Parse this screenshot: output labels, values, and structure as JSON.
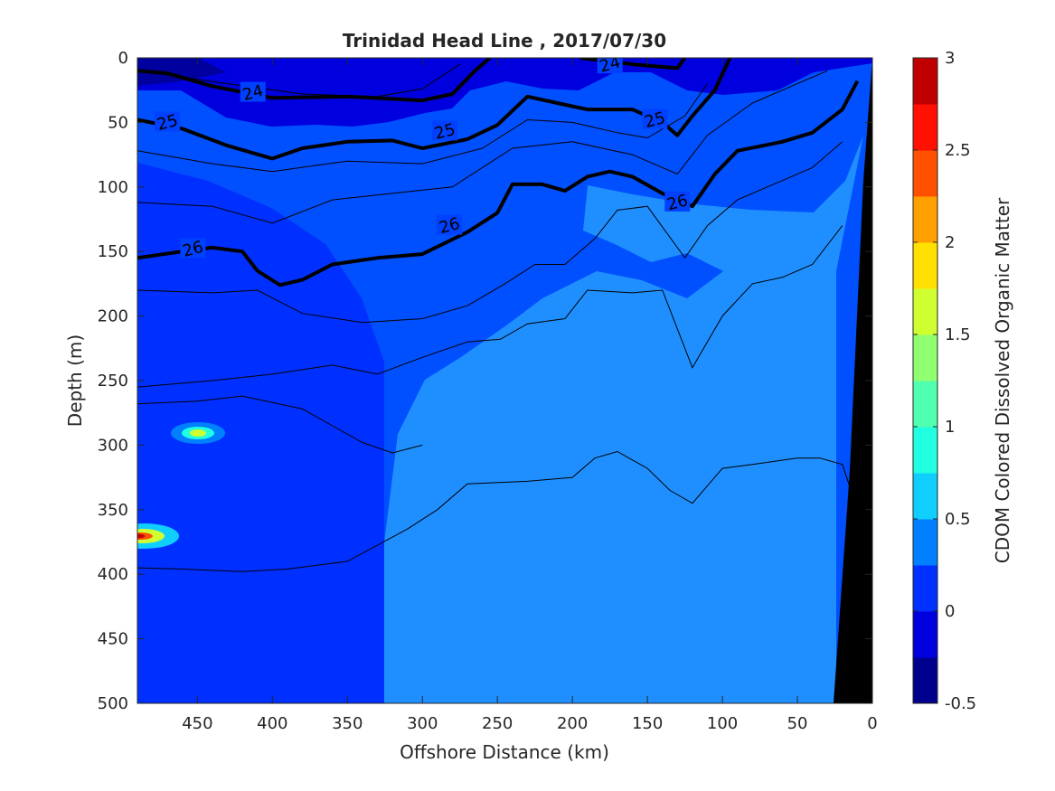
{
  "chart_data": {
    "type": "heatmap",
    "title": "Trinidad Head Line , 2017/07/30",
    "xlabel": "Offshore Distance (km)",
    "ylabel": "Depth (m)",
    "colorbar_label": "CDOM Colored Dissolved Organic Matter",
    "xlim": [
      490,
      0
    ],
    "ylim": [
      0,
      500
    ],
    "x_ticks": [
      450,
      400,
      350,
      300,
      250,
      200,
      150,
      100,
      50,
      0
    ],
    "y_ticks": [
      0,
      50,
      100,
      150,
      200,
      250,
      300,
      350,
      400,
      450,
      500
    ],
    "colorbar_range": [
      -0.5,
      3
    ],
    "colorbar_ticks": [
      -0.5,
      0,
      0.5,
      1,
      1.5,
      2,
      2.5,
      3
    ],
    "colorbar_colors": [
      "#00008f",
      "#0000df",
      "#0030ff",
      "#0080ff",
      "#10cfff",
      "#20ffdf",
      "#50ffaf",
      "#90ff70",
      "#cfff30",
      "#ffe000",
      "#ffa000",
      "#ff5000",
      "#ff1000",
      "#c00000"
    ],
    "regions": [
      {
        "name": "near-surface band",
        "value": 0.0
      },
      {
        "name": "upper water column",
        "value": 0.25
      },
      {
        "name": "deep offshore",
        "value": 0.25
      },
      {
        "name": "deep nearshore",
        "value": 0.5
      },
      {
        "name": "anomaly at 450 km, 290 m",
        "value": 1.8
      },
      {
        "name": "anomaly at 485 km, 370 m",
        "value": 2.9
      }
    ],
    "contours": [
      {
        "level": 24,
        "bold": true,
        "points": [
          [
            490,
            10
          ],
          [
            470,
            12
          ],
          [
            440,
            22
          ],
          [
            400,
            31
          ],
          [
            350,
            30
          ],
          [
            300,
            33
          ],
          [
            280,
            28
          ],
          [
            265,
            10
          ],
          [
            255,
            0
          ]
        ],
        "labels": [
          [
            413,
            27
          ]
        ]
      },
      {
        "level": 24,
        "bold": true,
        "points": [
          [
            195,
            0
          ],
          [
            160,
            5
          ],
          [
            130,
            8
          ],
          [
            125,
            0
          ]
        ],
        "labels": [
          [
            175,
            5
          ]
        ]
      },
      {
        "level": 25,
        "bold": true,
        "points": [
          [
            490,
            48
          ],
          [
            460,
            55
          ],
          [
            430,
            68
          ],
          [
            400,
            78
          ],
          [
            380,
            70
          ],
          [
            350,
            65
          ],
          [
            320,
            64
          ],
          [
            300,
            70
          ],
          [
            270,
            63
          ],
          [
            250,
            52
          ],
          [
            230,
            30
          ],
          [
            210,
            35
          ],
          [
            190,
            40
          ],
          [
            160,
            40
          ],
          [
            140,
            50
          ],
          [
            130,
            60
          ],
          [
            120,
            45
          ],
          [
            105,
            25
          ],
          [
            95,
            0
          ]
        ],
        "labels": [
          [
            470,
            50
          ],
          [
            285,
            57
          ],
          [
            145,
            48
          ]
        ]
      },
      {
        "level": 26,
        "bold": true,
        "points": [
          [
            490,
            155
          ],
          [
            460,
            150
          ],
          [
            440,
            147
          ],
          [
            420,
            150
          ],
          [
            410,
            165
          ],
          [
            395,
            176
          ],
          [
            380,
            172
          ],
          [
            360,
            160
          ],
          [
            330,
            155
          ],
          [
            300,
            152
          ],
          [
            270,
            135
          ],
          [
            250,
            120
          ],
          [
            240,
            98
          ],
          [
            220,
            98
          ],
          [
            205,
            103
          ],
          [
            190,
            92
          ],
          [
            175,
            88
          ],
          [
            160,
            92
          ],
          [
            140,
            105
          ],
          [
            120,
            115
          ],
          [
            105,
            90
          ],
          [
            90,
            72
          ],
          [
            60,
            65
          ],
          [
            40,
            58
          ],
          [
            20,
            40
          ],
          [
            10,
            18
          ]
        ],
        "labels": [
          [
            453,
            148
          ],
          [
            282,
            130
          ],
          [
            130,
            112
          ]
        ]
      }
    ],
    "thin_contours": [
      [
        [
          490,
          10
        ],
        [
          430,
          20
        ],
        [
          380,
          28
        ],
        [
          330,
          30
        ],
        [
          300,
          24
        ],
        [
          275,
          5
        ]
      ],
      [
        [
          490,
          72
        ],
        [
          440,
          82
        ],
        [
          400,
          88
        ],
        [
          350,
          80
        ],
        [
          300,
          82
        ],
        [
          260,
          70
        ],
        [
          230,
          48
        ],
        [
          200,
          50
        ],
        [
          170,
          58
        ],
        [
          150,
          62
        ],
        [
          125,
          45
        ],
        [
          110,
          20
        ]
      ],
      [
        [
          490,
          112
        ],
        [
          440,
          115
        ],
        [
          400,
          128
        ],
        [
          360,
          110
        ],
        [
          320,
          105
        ],
        [
          280,
          100
        ],
        [
          240,
          70
        ],
        [
          200,
          65
        ],
        [
          160,
          75
        ],
        [
          130,
          90
        ],
        [
          110,
          60
        ],
        [
          80,
          35
        ],
        [
          50,
          20
        ],
        [
          30,
          10
        ]
      ],
      [
        [
          490,
          180
        ],
        [
          440,
          182
        ],
        [
          410,
          180
        ],
        [
          380,
          198
        ],
        [
          340,
          205
        ],
        [
          300,
          202
        ],
        [
          270,
          192
        ],
        [
          245,
          175
        ],
        [
          225,
          160
        ],
        [
          205,
          160
        ],
        [
          185,
          140
        ],
        [
          170,
          118
        ],
        [
          150,
          115
        ],
        [
          125,
          155
        ],
        [
          110,
          130
        ],
        [
          90,
          110
        ],
        [
          60,
          95
        ],
        [
          40,
          85
        ],
        [
          20,
          65
        ]
      ],
      [
        [
          490,
          255
        ],
        [
          440,
          250
        ],
        [
          400,
          245
        ],
        [
          360,
          238
        ],
        [
          330,
          245
        ],
        [
          300,
          232
        ],
        [
          270,
          220
        ],
        [
          248,
          218
        ],
        [
          230,
          206
        ],
        [
          205,
          202
        ],
        [
          190,
          180
        ],
        [
          160,
          182
        ],
        [
          140,
          180
        ],
        [
          120,
          240
        ],
        [
          100,
          200
        ],
        [
          80,
          175
        ],
        [
          60,
          170
        ],
        [
          40,
          160
        ],
        [
          20,
          130
        ]
      ],
      [
        [
          490,
          268
        ],
        [
          450,
          266
        ],
        [
          420,
          262
        ],
        [
          380,
          272
        ],
        [
          360,
          285
        ],
        [
          340,
          298
        ],
        [
          320,
          306
        ],
        [
          300,
          300
        ]
      ],
      [
        [
          490,
          395
        ],
        [
          460,
          396
        ],
        [
          420,
          398
        ],
        [
          390,
          396
        ],
        [
          350,
          390
        ],
        [
          310,
          365
        ],
        [
          290,
          350
        ],
        [
          270,
          330
        ],
        [
          230,
          328
        ],
        [
          200,
          325
        ],
        [
          185,
          310
        ],
        [
          170,
          305
        ],
        [
          150,
          318
        ],
        [
          135,
          335
        ],
        [
          120,
          345
        ],
        [
          100,
          318
        ],
        [
          80,
          315
        ],
        [
          50,
          310
        ],
        [
          35,
          310
        ],
        [
          20,
          315
        ],
        [
          10,
          350
        ]
      ]
    ]
  }
}
